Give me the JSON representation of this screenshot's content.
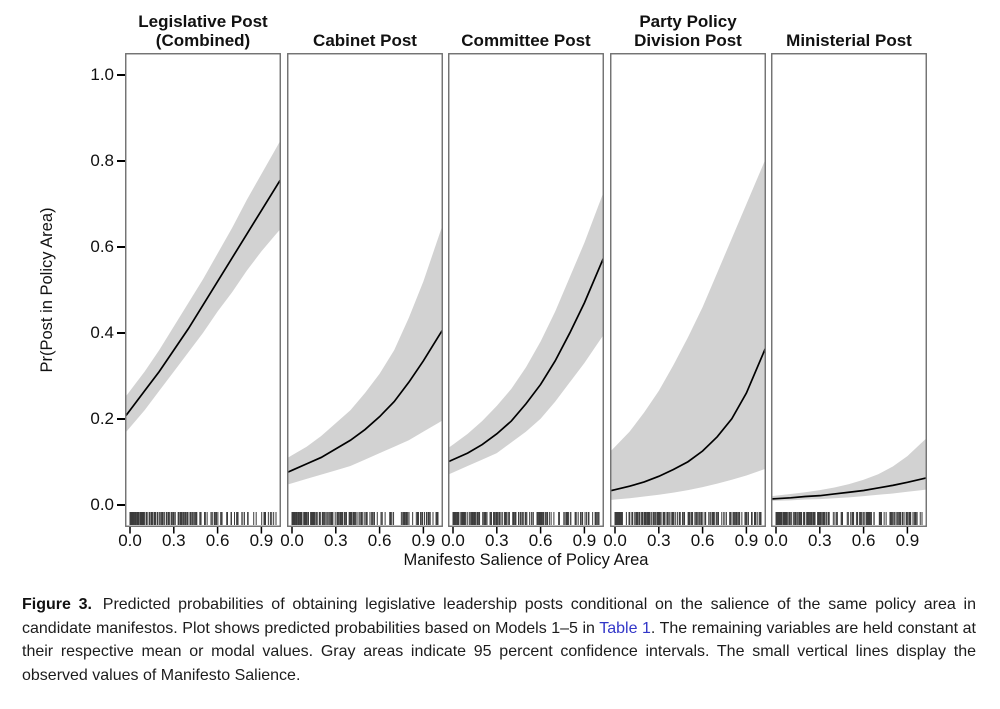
{
  "figure": {
    "ylabel": "Pr(Post in Policy Area)",
    "xlabel": "Manifesto Salience of Policy Area"
  },
  "caption": {
    "label": "Figure 3.",
    "text_before_link": " Predicted probabilities of obtaining legislative leadership posts conditional on the salience of the same policy area in candidate manifestos. Plot shows predicted probabilities based on Models 1–5 in ",
    "link_text": "Table 1",
    "text_after_link": ". The remaining variables are held constant at their respective mean or modal values. Gray areas indicate 95 percent confidence intervals. The small vertical lines display the observed values of Manifesto Salience.",
    "link_color": "#3236c8"
  },
  "chart_data": {
    "type": "line",
    "ci_level": "95 percent confidence intervals",
    "x": [
      0,
      0.1,
      0.2,
      0.3,
      0.4,
      0.5,
      0.6,
      0.7,
      0.8,
      0.9,
      1.0
    ],
    "x_ticks": [
      0.0,
      0.3,
      0.6,
      0.9
    ],
    "y_ticks": [
      0.0,
      0.2,
      0.4,
      0.6,
      0.8,
      1.0
    ],
    "xlim": [
      -0.04,
      1.04
    ],
    "ylim": [
      -0.05,
      1.05
    ],
    "grid": false,
    "legend": "none",
    "rug_note": "small vertical lines show observed values of Manifesto Salience",
    "style": {
      "line_color": "#000000",
      "ci_fill": "#d2d2d2",
      "rug_color": "#3c3c3c",
      "border_color": "#6e6e6e",
      "tick_color": "#000000"
    },
    "panels": [
      {
        "title_lines": [
          "Legislative Post",
          "(Combined)"
        ],
        "mean": [
          0.22,
          0.265,
          0.31,
          0.36,
          0.41,
          0.465,
          0.52,
          0.575,
          0.63,
          0.685,
          0.74
        ],
        "lower": [
          0.18,
          0.22,
          0.265,
          0.31,
          0.355,
          0.4,
          0.45,
          0.495,
          0.545,
          0.59,
          0.63
        ],
        "upper": [
          0.265,
          0.31,
          0.36,
          0.415,
          0.47,
          0.525,
          0.585,
          0.645,
          0.71,
          0.77,
          0.83
        ],
        "rug": {
          "seed": 101,
          "count": 175,
          "skew": 2.0
        }
      },
      {
        "title_lines": [
          "Cabinet Post"
        ],
        "mean": [
          0.08,
          0.095,
          0.11,
          0.13,
          0.15,
          0.175,
          0.205,
          0.24,
          0.285,
          0.335,
          0.39
        ],
        "lower": [
          0.05,
          0.06,
          0.07,
          0.08,
          0.09,
          0.105,
          0.12,
          0.135,
          0.15,
          0.17,
          0.19
        ],
        "upper": [
          0.115,
          0.135,
          0.16,
          0.19,
          0.22,
          0.26,
          0.305,
          0.36,
          0.435,
          0.52,
          0.62
        ],
        "rug": {
          "seed": 202,
          "count": 170,
          "skew": 1.9
        }
      },
      {
        "title_lines": [
          "Committee Post"
        ],
        "mean": [
          0.105,
          0.12,
          0.14,
          0.165,
          0.195,
          0.235,
          0.28,
          0.335,
          0.4,
          0.47,
          0.55
        ],
        "lower": [
          0.075,
          0.09,
          0.105,
          0.12,
          0.145,
          0.17,
          0.2,
          0.24,
          0.285,
          0.33,
          0.38
        ],
        "upper": [
          0.14,
          0.165,
          0.195,
          0.23,
          0.27,
          0.32,
          0.38,
          0.45,
          0.53,
          0.61,
          0.7
        ],
        "rug": {
          "seed": 303,
          "count": 170,
          "skew": 1.9
        }
      },
      {
        "title_lines": [
          "Party Policy",
          "Division Post"
        ],
        "mean": [
          0.035,
          0.043,
          0.053,
          0.066,
          0.082,
          0.1,
          0.125,
          0.158,
          0.2,
          0.26,
          0.34
        ],
        "lower": [
          0.012,
          0.015,
          0.019,
          0.023,
          0.028,
          0.034,
          0.041,
          0.049,
          0.058,
          0.068,
          0.08
        ],
        "upper": [
          0.135,
          0.17,
          0.215,
          0.265,
          0.325,
          0.39,
          0.46,
          0.54,
          0.62,
          0.7,
          0.78
        ],
        "rug": {
          "seed": 404,
          "count": 175,
          "skew": 1.7
        }
      },
      {
        "title_lines": [
          "Ministerial Post"
        ],
        "mean": [
          0.014,
          0.016,
          0.019,
          0.021,
          0.025,
          0.029,
          0.033,
          0.039,
          0.045,
          0.052,
          0.06
        ],
        "lower": [
          0.009,
          0.01,
          0.012,
          0.013,
          0.015,
          0.017,
          0.02,
          0.023,
          0.026,
          0.03,
          0.034
        ],
        "upper": [
          0.021,
          0.025,
          0.029,
          0.034,
          0.04,
          0.048,
          0.058,
          0.071,
          0.089,
          0.113,
          0.145
        ],
        "rug": {
          "seed": 505,
          "count": 175,
          "skew": 1.8
        }
      }
    ]
  }
}
